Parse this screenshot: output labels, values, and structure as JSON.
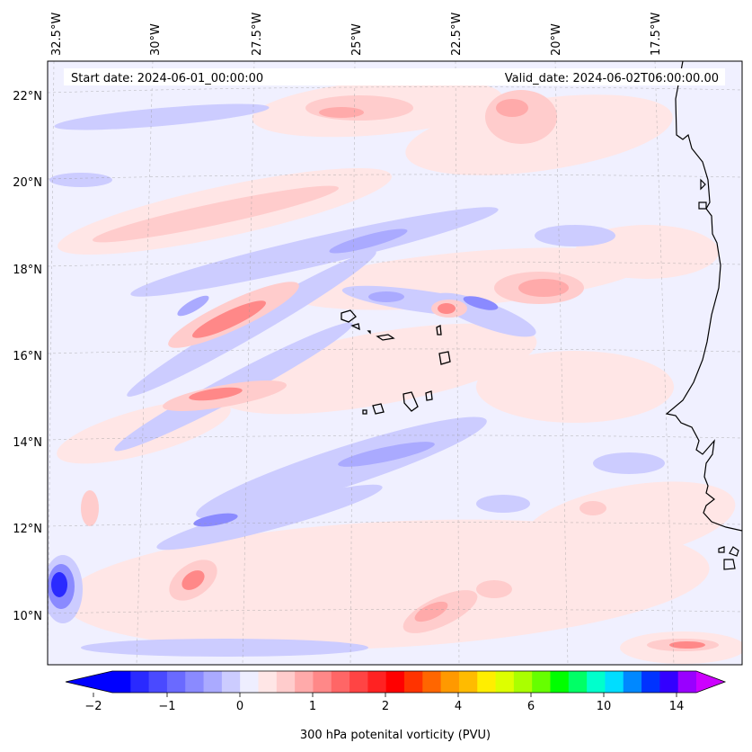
{
  "map": {
    "start_label": "Start date: 2024-06-01_00:00:00",
    "valid_label": "Valid_date: 2024-06-02T06:00:00.00",
    "lon_labels": [
      "32.5°W",
      "30°W",
      "27.5°W",
      "25°W",
      "22.5°W",
      "20°W",
      "17.5°W"
    ],
    "lat_labels": [
      "22°N",
      "20°N",
      "18°N",
      "16°N",
      "14°N",
      "12°N",
      "10°N"
    ]
  },
  "colorbar": {
    "title": "300 hPa potenital vorticity (PVU)",
    "tick_labels": [
      "−2",
      "−1",
      "0",
      "1",
      "2",
      "4",
      "6",
      "10",
      "14"
    ],
    "colors": [
      "#0000ff",
      "#2a2aff",
      "#4a4aff",
      "#6a6aff",
      "#8a8aff",
      "#aaaaff",
      "#ccccff",
      "#eeeeff",
      "#ffe6e6",
      "#ffcccc",
      "#ffaaaa",
      "#ff8888",
      "#ff6666",
      "#ff4444",
      "#ff2222",
      "#ff0000",
      "#ff3300",
      "#ff6600",
      "#ff9900",
      "#ffbb00",
      "#ffee00",
      "#ddff00",
      "#aaff00",
      "#66ff00",
      "#00ff00",
      "#00ff66",
      "#00ffcc",
      "#00ddff",
      "#0088ff",
      "#0033ff",
      "#3300ff",
      "#9900ff"
    ],
    "under_color": "#0000ff",
    "over_color": "#cc00ff"
  },
  "palette": {
    "background": "#f0f0ff",
    "pos1": "#ffe6e6",
    "pos2": "#ffcccc",
    "pos3": "#ffaaaa",
    "pos4": "#ff8888",
    "pos5": "#ff6666",
    "neg1": "#ccccff",
    "neg2": "#aaaaff",
    "neg3": "#8a8aff",
    "neg4": "#4a4aff",
    "neg5": "#2a2aff"
  }
}
